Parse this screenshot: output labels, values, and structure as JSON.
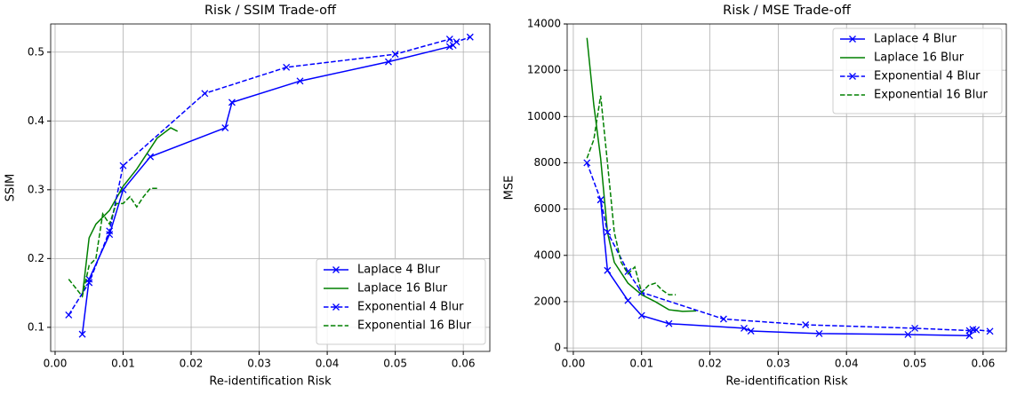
{
  "chart_data": [
    {
      "type": "line",
      "title": "Risk / SSIM Trade-off",
      "x_label": "Re-identification Risk",
      "y_label": "SSIM",
      "xlim": [
        -0.00065,
        0.0639
      ],
      "ylim": [
        0.065,
        0.541
      ],
      "xticks": [
        {
          "value": 0,
          "label": "0.00"
        },
        {
          "value": 0.01,
          "label": "0.01"
        },
        {
          "value": 0.02,
          "label": "0.02"
        },
        {
          "value": 0.03,
          "label": "0.03"
        },
        {
          "value": 0.04,
          "label": "0.04"
        },
        {
          "value": 0.05,
          "label": "0.05"
        },
        {
          "value": 0.06,
          "label": "0.06"
        }
      ],
      "yticks": [
        0.1,
        0.2,
        0.3,
        0.4,
        0.5
      ],
      "grid": true,
      "legend": "lower right",
      "series": [
        {
          "name": "Laplace 4 Blur",
          "color": "#0000ff",
          "linestyle": "solid",
          "marker": "x",
          "x": [
            0.004,
            0.005,
            0.008,
            0.01,
            0.014,
            0.025,
            0.026,
            0.036,
            0.049,
            0.058,
            0.0585
          ],
          "values": [
            0.09,
            0.17,
            0.235,
            0.3,
            0.348,
            0.39,
            0.427,
            0.458,
            0.486,
            0.508,
            0.51
          ]
        },
        {
          "name": "Laplace 16 Blur",
          "color": "#008000",
          "linestyle": "solid",
          "marker": "none",
          "x": [
            0.004,
            0.005,
            0.006,
            0.008,
            0.01,
            0.012,
            0.014,
            0.015,
            0.017,
            0.018
          ],
          "values": [
            0.145,
            0.23,
            0.25,
            0.27,
            0.305,
            0.33,
            0.36,
            0.375,
            0.39,
            0.385
          ]
        },
        {
          "name": "Exponential 4 Blur",
          "color": "#0000ff",
          "linestyle": "dashed",
          "marker": "x",
          "x": [
            0.002,
            0.005,
            0.008,
            0.01,
            0.022,
            0.034,
            0.05,
            0.058,
            0.059,
            0.061
          ],
          "values": [
            0.118,
            0.165,
            0.24,
            0.335,
            0.44,
            0.478,
            0.497,
            0.519,
            0.515,
            0.522
          ]
        },
        {
          "name": "Exponential 16 Blur",
          "color": "#008000",
          "linestyle": "dashed",
          "marker": "none",
          "x": [
            0.002,
            0.004,
            0.005,
            0.006,
            0.007,
            0.008,
            0.009,
            0.01,
            0.011,
            0.012,
            0.013,
            0.014,
            0.015
          ],
          "values": [
            0.17,
            0.145,
            0.19,
            0.2,
            0.265,
            0.25,
            0.28,
            0.28,
            0.29,
            0.275,
            0.29,
            0.302,
            0.302
          ]
        }
      ]
    },
    {
      "type": "line",
      "title": "Risk / MSE Trade-off",
      "x_label": "Re-identification Risk",
      "y_label": "MSE",
      "xlim": [
        -0.0009,
        0.0634
      ],
      "ylim": [
        -150,
        14000
      ],
      "xticks": [
        {
          "value": 0,
          "label": "0.00"
        },
        {
          "value": 0.01,
          "label": "0.01"
        },
        {
          "value": 0.02,
          "label": "0.02"
        },
        {
          "value": 0.03,
          "label": "0.03"
        },
        {
          "value": 0.04,
          "label": "0.04"
        },
        {
          "value": 0.05,
          "label": "0.05"
        },
        {
          "value": 0.06,
          "label": "0.06"
        }
      ],
      "yticks": [
        0,
        2000,
        4000,
        6000,
        8000,
        10000,
        12000,
        14000
      ],
      "grid": true,
      "legend": "upper right",
      "series": [
        {
          "name": "Laplace 4 Blur",
          "color": "#0000ff",
          "linestyle": "solid",
          "marker": "x",
          "x": [
            0.004,
            0.005,
            0.008,
            0.01,
            0.014,
            0.025,
            0.026,
            0.036,
            0.049,
            0.058,
            0.0585
          ],
          "values": [
            6400,
            3350,
            2050,
            1400,
            1050,
            850,
            730,
            620,
            580,
            530,
            800
          ]
        },
        {
          "name": "Laplace 16 Blur",
          "color": "#008000",
          "linestyle": "solid",
          "marker": "none",
          "x": [
            0.002,
            0.003,
            0.004,
            0.005,
            0.006,
            0.008,
            0.01,
            0.012,
            0.014,
            0.016,
            0.018
          ],
          "values": [
            13400,
            10500,
            8200,
            5000,
            3700,
            2800,
            2300,
            2000,
            1650,
            1580,
            1600
          ]
        },
        {
          "name": "Exponential 4 Blur",
          "color": "#0000ff",
          "linestyle": "dashed",
          "marker": "x",
          "x": [
            0.002,
            0.004,
            0.005,
            0.008,
            0.01,
            0.022,
            0.034,
            0.05,
            0.058,
            0.059,
            0.061
          ],
          "values": [
            8000,
            6400,
            5000,
            3300,
            2400,
            1250,
            1000,
            850,
            750,
            780,
            720
          ]
        },
        {
          "name": "Exponential 16 Blur",
          "color": "#008000",
          "linestyle": "dashed",
          "marker": "none",
          "x": [
            0.002,
            0.003,
            0.004,
            0.005,
            0.006,
            0.007,
            0.008,
            0.009,
            0.01,
            0.011,
            0.012,
            0.013,
            0.014,
            0.015
          ],
          "values": [
            8200,
            9000,
            10900,
            8000,
            5000,
            3700,
            3200,
            3500,
            2400,
            2700,
            2800,
            2500,
            2300,
            2300
          ]
        }
      ]
    }
  ]
}
